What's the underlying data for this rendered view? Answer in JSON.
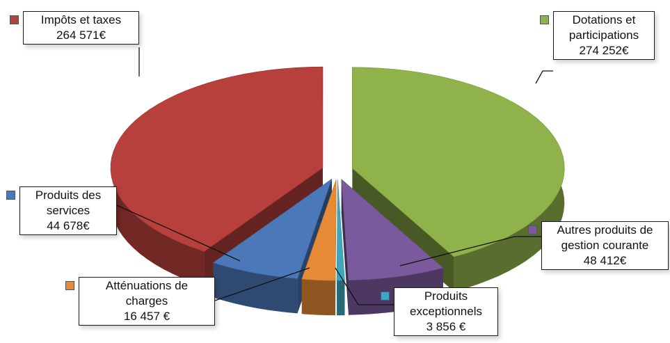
{
  "chart_data": {
    "type": "pie",
    "title": "",
    "unit": "€",
    "categories": [
      "Impôts et taxes",
      "Dotations et participations",
      "Autres produits de gestion courante",
      "Produits exceptionnels",
      "Atténuations de charges",
      "Produits des services"
    ],
    "values": [
      264571,
      274252,
      48412,
      3856,
      16457,
      44678
    ],
    "colors": [
      "#b8403c",
      "#8fb24a",
      "#7a5a9c",
      "#3fa6bf",
      "#e68a36",
      "#4b78b8"
    ],
    "labels": [
      {
        "name": "Impôts et taxes",
        "lines": [
          "Impôts et taxes",
          "264 571€"
        ]
      },
      {
        "name": "Dotations et participations",
        "lines": [
          "Dotations et",
          "participations",
          "274 252€"
        ]
      },
      {
        "name": "Autres produits de gestion courante",
        "lines": [
          "Autres produits de",
          "gestion courante",
          "48 412€"
        ]
      },
      {
        "name": "Produits exceptionnels",
        "lines": [
          "Produits",
          "exceptionnels",
          "3 856 €"
        ]
      },
      {
        "name": "Atténuations de charges",
        "lines": [
          "Atténuations de",
          "charges",
          "16 457 €"
        ]
      },
      {
        "name": "Produits des services",
        "lines": [
          "Produits des",
          "services",
          "44 678€"
        ]
      }
    ],
    "legend": "none",
    "style": "3d-exploded-pie"
  }
}
